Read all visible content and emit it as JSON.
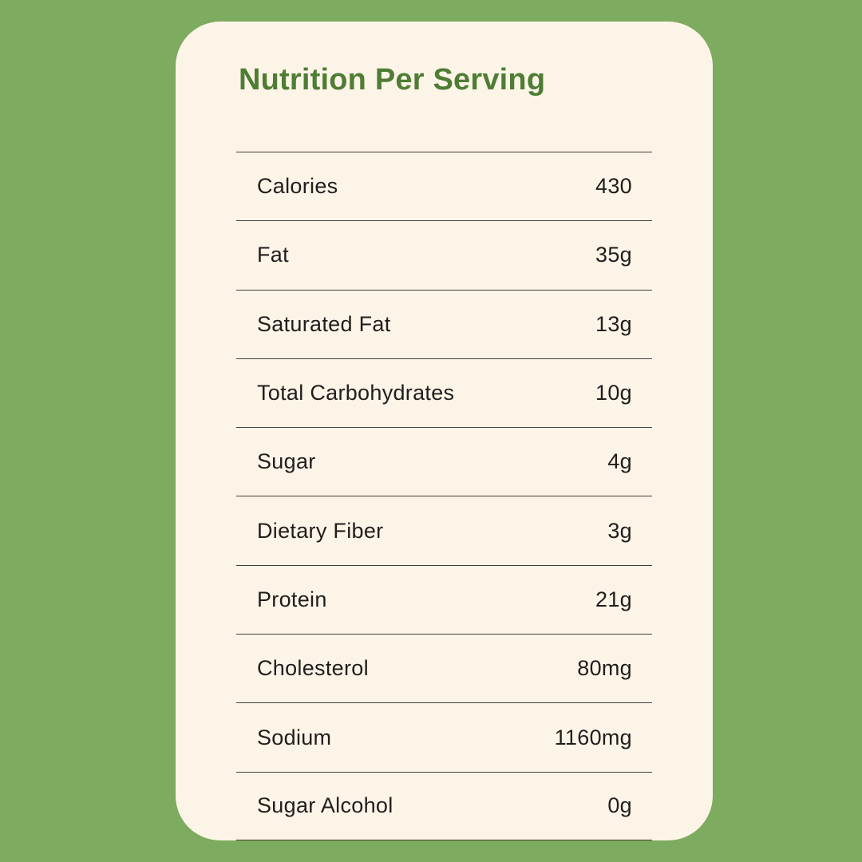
{
  "card": {
    "title": "Nutrition Per Serving",
    "rows": [
      {
        "label": "Calories",
        "value": "430"
      },
      {
        "label": "Fat",
        "value": "35g"
      },
      {
        "label": "Saturated Fat",
        "value": "13g"
      },
      {
        "label": "Total Carbohydrates",
        "value": "10g"
      },
      {
        "label": "Sugar",
        "value": "4g"
      },
      {
        "label": "Dietary Fiber",
        "value": "3g"
      },
      {
        "label": "Protein",
        "value": "21g"
      },
      {
        "label": "Cholesterol",
        "value": "80mg"
      },
      {
        "label": "Sodium",
        "value": "1160mg"
      },
      {
        "label": "Sugar Alcohol",
        "value": "0g"
      }
    ]
  },
  "colors": {
    "background": "#7DAB5F",
    "card": "#FDF4E8",
    "title": "#4E7D33",
    "text": "#1F1E1C",
    "divider": "#403E3A"
  }
}
